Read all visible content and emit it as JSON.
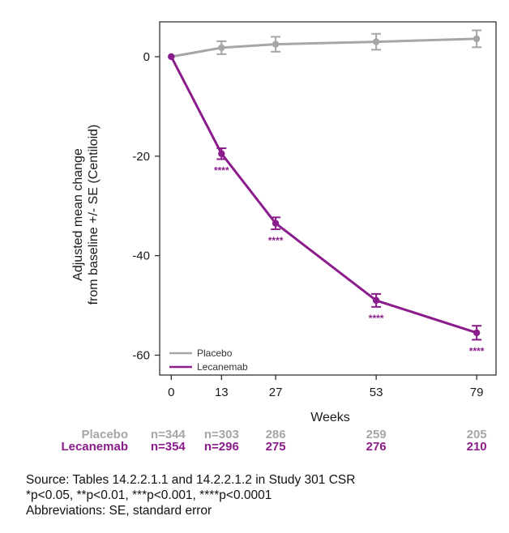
{
  "chart_data": {
    "type": "line",
    "title": "",
    "xlabel": "Weeks",
    "ylabel": [
      "Adjusted mean change",
      "from baseline +/- SE (Centiloid)"
    ],
    "x": [
      0,
      13,
      27,
      53,
      79
    ],
    "x_ticks": [
      0,
      13,
      27,
      53,
      79
    ],
    "y_ticks": [
      0,
      -20,
      -40,
      -60
    ],
    "xlim": [
      -3,
      84
    ],
    "ylim": [
      -64,
      7
    ],
    "grid": false,
    "legend_position": "bottom-left",
    "series": [
      {
        "name": "Placebo",
        "color": "#a6a6a6",
        "values": [
          0,
          1.8,
          2.5,
          3.0,
          3.6
        ],
        "se": [
          0,
          1.3,
          1.5,
          1.6,
          1.7
        ],
        "significance": [
          "",
          "",
          "",
          "",
          ""
        ],
        "n": [
          "n=344",
          "n=303",
          "286",
          "259",
          "205"
        ]
      },
      {
        "name": "Lecanemab",
        "color": "#8b1c8b",
        "values": [
          0,
          -19.5,
          -33.5,
          -49.0,
          -55.5
        ],
        "se": [
          0,
          1.1,
          1.2,
          1.3,
          1.4
        ],
        "significance": [
          "",
          "****",
          "****",
          "****",
          "****"
        ],
        "n": [
          "n=354",
          "n=296",
          "275",
          "276",
          "210"
        ]
      }
    ]
  },
  "footnotes": [
    "Source: Tables 14.2.2.1.1 and 14.2.2.1.2 in Study 301 CSR",
    "*p<0.05, **p<0.01, ***p<0.001, ****p<0.0001",
    "Abbreviations: SE, standard error"
  ]
}
